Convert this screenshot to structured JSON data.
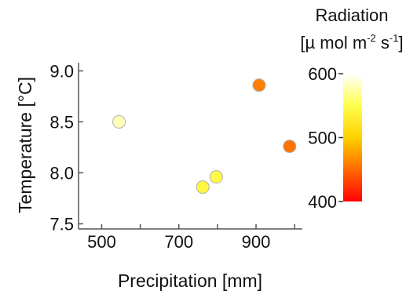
{
  "chart_data": {
    "type": "scatter",
    "title": "",
    "xlabel": "Precipitation [mm]",
    "ylabel": "Temperature [°C]",
    "xlim": [
      440,
      1020
    ],
    "ylim": [
      7.45,
      9.08
    ],
    "xticks": [
      500,
      700,
      900
    ],
    "xtick_labels": [
      "500",
      "700",
      "900"
    ],
    "xticks_minor": [
      600,
      800,
      1000
    ],
    "yticks": [
      7.5,
      8.0,
      8.5,
      9.0
    ],
    "ytick_labels": [
      "7.5",
      "8.0",
      "8.5",
      "9.0"
    ],
    "grid": false,
    "points": [
      {
        "x": 545,
        "y": 8.5,
        "c": 580
      },
      {
        "x": 762,
        "y": 7.86,
        "c": 540
      },
      {
        "x": 797,
        "y": 7.96,
        "c": 545
      },
      {
        "x": 908,
        "y": 8.86,
        "c": 460
      },
      {
        "x": 987,
        "y": 8.26,
        "c": 455
      }
    ],
    "colorbar": {
      "title_line1": "Radiation",
      "title_parts": [
        "[µ mol m",
        "-2",
        " s",
        "-1",
        "]"
      ],
      "min": 400,
      "max": 600,
      "ticks": [
        400,
        500,
        600
      ],
      "tick_labels": [
        "400",
        "500",
        "600"
      ],
      "colors": [
        "#ff0000",
        "#ff6a00",
        "#ffd100",
        "#ffff4d",
        "#ffffff"
      ]
    },
    "marker_edge_color": "#b0b0b0",
    "axis_color": "#555555"
  }
}
